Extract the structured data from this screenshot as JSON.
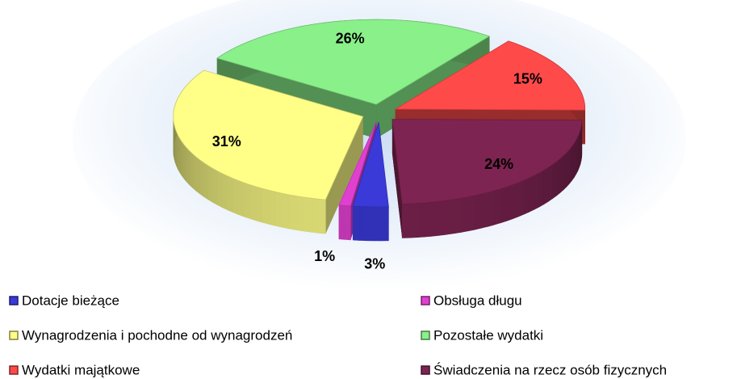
{
  "chart_data": {
    "type": "pie",
    "categories": [
      "Dotacje bieżące",
      "Obsługa długu",
      "Wynagrodzenia i pochodne od wynagrodzeń",
      "Pozostałe wydatki",
      "Wydatki majątkowe",
      "Świadczenia na rzecz osób fizycznych"
    ],
    "values": [
      3,
      1,
      31,
      26,
      15,
      24
    ],
    "value_labels": [
      "3%",
      "1%",
      "31%",
      "26%",
      "15%",
      "24%"
    ],
    "colors": [
      "#3a3ad8",
      "#e040d0",
      "#ffff88",
      "#8af08a",
      "#ff4a4a",
      "#7e2452"
    ],
    "legend": "bottom"
  }
}
